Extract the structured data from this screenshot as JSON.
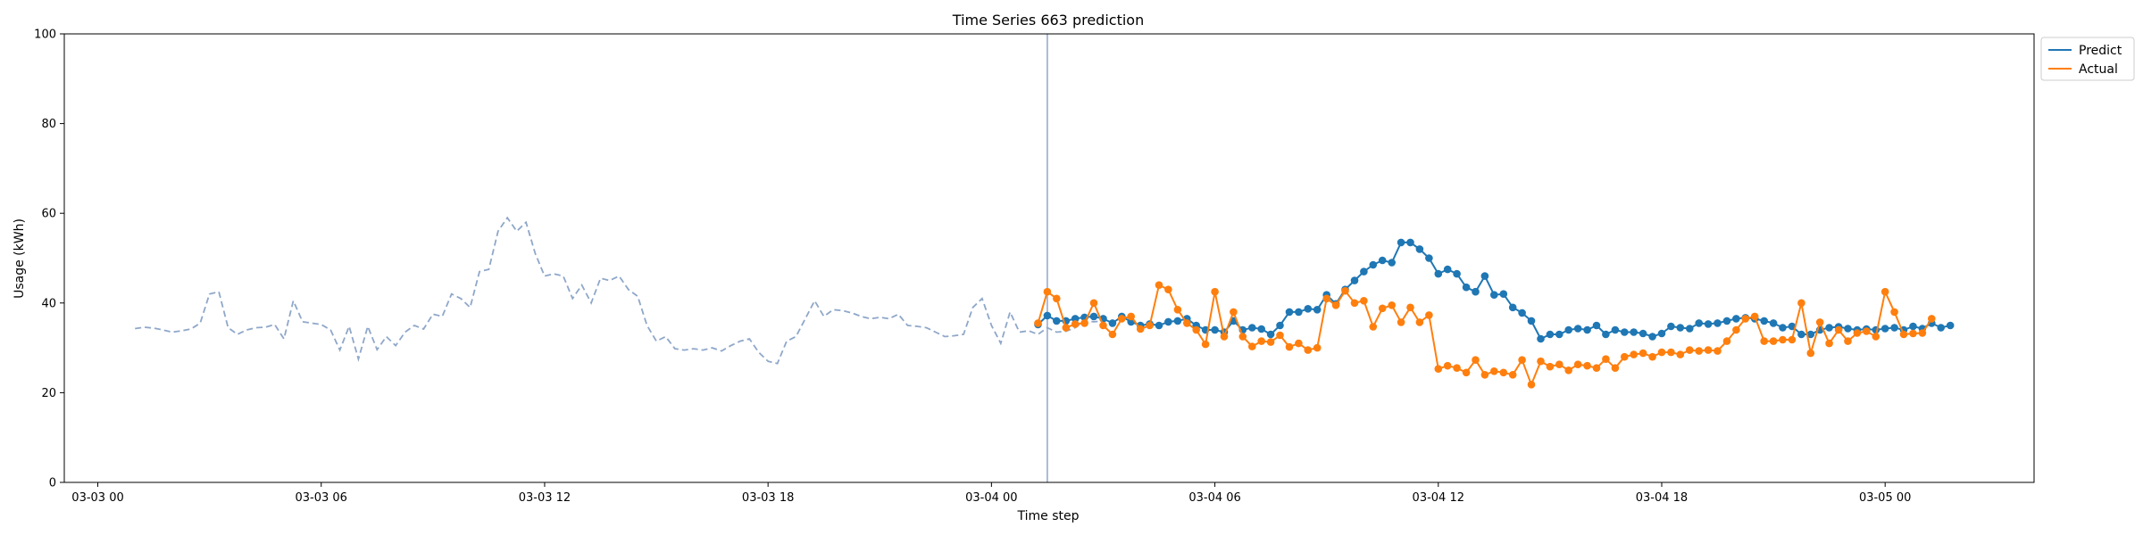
{
  "chart_data": {
    "type": "line",
    "title": "Time Series 663 prediction",
    "xlabel": "Time step",
    "ylabel": "Usage (kWh)",
    "ylim": [
      0,
      100
    ],
    "yticks": [
      0,
      20,
      40,
      60,
      80,
      100
    ],
    "xlim_hours": [
      -0.9,
      52.0
    ],
    "xticks": [
      {
        "hour": 0,
        "label": "03-03 00"
      },
      {
        "hour": 6,
        "label": "03-03 06"
      },
      {
        "hour": 12,
        "label": "03-03 12"
      },
      {
        "hour": 18,
        "label": "03-03 18"
      },
      {
        "hour": 24,
        "label": "03-04 00"
      },
      {
        "hour": 30,
        "label": "03-04 06"
      },
      {
        "hour": 36,
        "label": "03-04 12"
      },
      {
        "hour": 42,
        "label": "03-04 18"
      },
      {
        "hour": 48,
        "label": "03-05 00"
      }
    ],
    "split_hour": 25.5,
    "step_hours": 0.25,
    "history": {
      "start_hour": 1.0,
      "step_hours": 0.25,
      "color": "#8fa7c9",
      "values": [
        34.3,
        34.6,
        34.4,
        34.0,
        33.5,
        33.8,
        34.2,
        35.5,
        42.0,
        42.5,
        34.5,
        33.0,
        34.0,
        34.5,
        34.6,
        35.2,
        32.0,
        40.5,
        35.8,
        35.5,
        35.2,
        34.0,
        29.5,
        34.8,
        27.5,
        34.8,
        29.6,
        32.5,
        30.5,
        33.5,
        35.0,
        34.2,
        37.5,
        37.0,
        42.0,
        41.0,
        39.0,
        47.0,
        47.5,
        56.0,
        59.0,
        56.0,
        58.0,
        51.0,
        46.0,
        46.5,
        46.0,
        41.0,
        44.0,
        40.0,
        45.5,
        45.0,
        46.0,
        43.0,
        41.5,
        35.0,
        31.5,
        32.5,
        29.8,
        29.5,
        29.8,
        29.5,
        30.0,
        29.3,
        30.5,
        31.5,
        32.0,
        29.0,
        27.0,
        26.5,
        31.5,
        32.5,
        36.5,
        40.5,
        37.0,
        38.5,
        38.3,
        37.8,
        37.0,
        36.5,
        36.8,
        36.5,
        37.5,
        35.0,
        34.8,
        34.5,
        33.5,
        32.5,
        32.7,
        33.0,
        39.0,
        41.0,
        35.0,
        31.0,
        38.0,
        33.5,
        33.8,
        33.0,
        34.5,
        33.5,
        33.7,
        34.5,
        36.0,
        35.8,
        36.0
      ]
    },
    "series": [
      {
        "name": "Predict",
        "color": "#1f77b4",
        "start_hour": 25.25,
        "values": [
          35.2,
          37.2,
          36.0,
          36.0,
          36.5,
          36.8,
          37.0,
          36.5,
          35.5,
          37.0,
          35.8,
          35.0,
          35.3,
          35.0,
          35.8,
          36.0,
          36.5,
          35.0,
          34.0,
          34.0,
          33.5,
          36.0,
          34.0,
          34.5,
          34.2,
          33.0,
          35.0,
          38.0,
          38.0,
          38.7,
          38.5,
          41.8,
          39.8,
          43.0,
          45.0,
          47.0,
          48.5,
          49.5,
          49.0,
          53.5,
          53.5,
          52.0,
          50.0,
          46.5,
          47.5,
          46.5,
          43.5,
          42.5,
          46.0,
          41.8,
          42.0,
          39.0,
          37.8,
          36.0,
          32.0,
          33.0,
          33.0,
          34.0,
          34.3,
          34.0,
          35.0,
          33.0,
          34.0,
          33.5,
          33.5,
          33.2,
          32.5,
          33.2,
          34.8,
          34.5,
          34.3,
          35.5,
          35.3,
          35.5,
          36.0,
          36.5,
          36.7,
          36.5,
          36.0,
          35.5,
          34.5,
          34.8,
          33.0,
          33.0,
          34.0,
          34.5,
          34.7,
          34.3,
          34.0,
          34.2,
          34.0,
          34.3,
          34.5,
          34.0,
          34.8,
          34.3,
          35.5,
          34.5,
          35.0
        ]
      },
      {
        "name": "Actual",
        "color": "#ff7f0e",
        "start_hour": 25.25,
        "values": [
          35.5,
          42.5,
          41.0,
          34.5,
          35.3,
          35.5,
          40.0,
          35.0,
          33.0,
          36.5,
          37.0,
          34.2,
          35.0,
          44.0,
          43.0,
          38.5,
          35.5,
          34.0,
          30.8,
          42.5,
          32.5,
          38.0,
          32.5,
          30.3,
          31.5,
          31.3,
          32.8,
          30.2,
          31.0,
          29.5,
          30.0,
          41.0,
          39.5,
          42.7,
          40.0,
          40.5,
          34.7,
          38.8,
          39.5,
          35.7,
          39.0,
          35.7,
          37.3,
          25.3,
          26.0,
          25.5,
          24.5,
          27.3,
          24.0,
          24.8,
          24.5,
          24.0,
          27.3,
          21.8,
          27.0,
          25.8,
          26.3,
          25.0,
          26.3,
          26.0,
          25.5,
          27.5,
          25.5,
          28.0,
          28.5,
          28.8,
          28.0,
          29.0,
          29.0,
          28.5,
          29.5,
          29.3,
          29.5,
          29.3,
          31.5,
          34.0,
          36.5,
          37.0,
          31.5,
          31.5,
          31.8,
          31.8,
          40.0,
          28.8,
          35.7,
          31.0,
          34.0,
          31.5,
          33.3,
          33.7,
          32.5,
          42.5,
          38.0,
          33.0,
          33.2,
          33.3,
          36.5
        ]
      }
    ],
    "legend": {
      "placement": "top-right-outside",
      "entries": [
        {
          "label": "Predict",
          "color": "#1f77b4"
        },
        {
          "label": "Actual",
          "color": "#ff7f0e"
        }
      ]
    },
    "grid": false
  }
}
